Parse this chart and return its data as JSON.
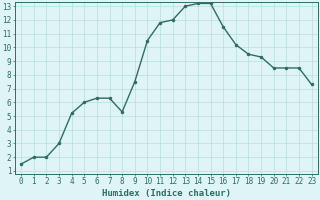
{
  "x": [
    0,
    1,
    2,
    3,
    4,
    5,
    6,
    7,
    8,
    9,
    10,
    11,
    12,
    13,
    14,
    15,
    16,
    17,
    18,
    19,
    20,
    21,
    22,
    23
  ],
  "y": [
    1.5,
    2.0,
    2.0,
    3.0,
    5.2,
    6.0,
    6.3,
    6.3,
    5.3,
    7.5,
    10.5,
    11.8,
    12.0,
    13.0,
    13.2,
    13.2,
    11.5,
    10.2,
    9.5,
    9.3,
    8.5,
    8.5,
    8.5,
    7.3
  ],
  "xlabel": "Humidex (Indice chaleur)",
  "ylim": [
    1,
    13
  ],
  "xlim": [
    -0.5,
    23.5
  ],
  "yticks": [
    1,
    2,
    3,
    4,
    5,
    6,
    7,
    8,
    9,
    10,
    11,
    12,
    13
  ],
  "xticks": [
    0,
    1,
    2,
    3,
    4,
    5,
    6,
    7,
    8,
    9,
    10,
    11,
    12,
    13,
    14,
    15,
    16,
    17,
    18,
    19,
    20,
    21,
    22,
    23
  ],
  "line_color": "#2d6e63",
  "marker_color": "#2d6e63",
  "bg_color": "#dff4f4",
  "grid_color": "#b8dede",
  "xlabel_fontsize": 6.5,
  "tick_fontsize": 5.5
}
